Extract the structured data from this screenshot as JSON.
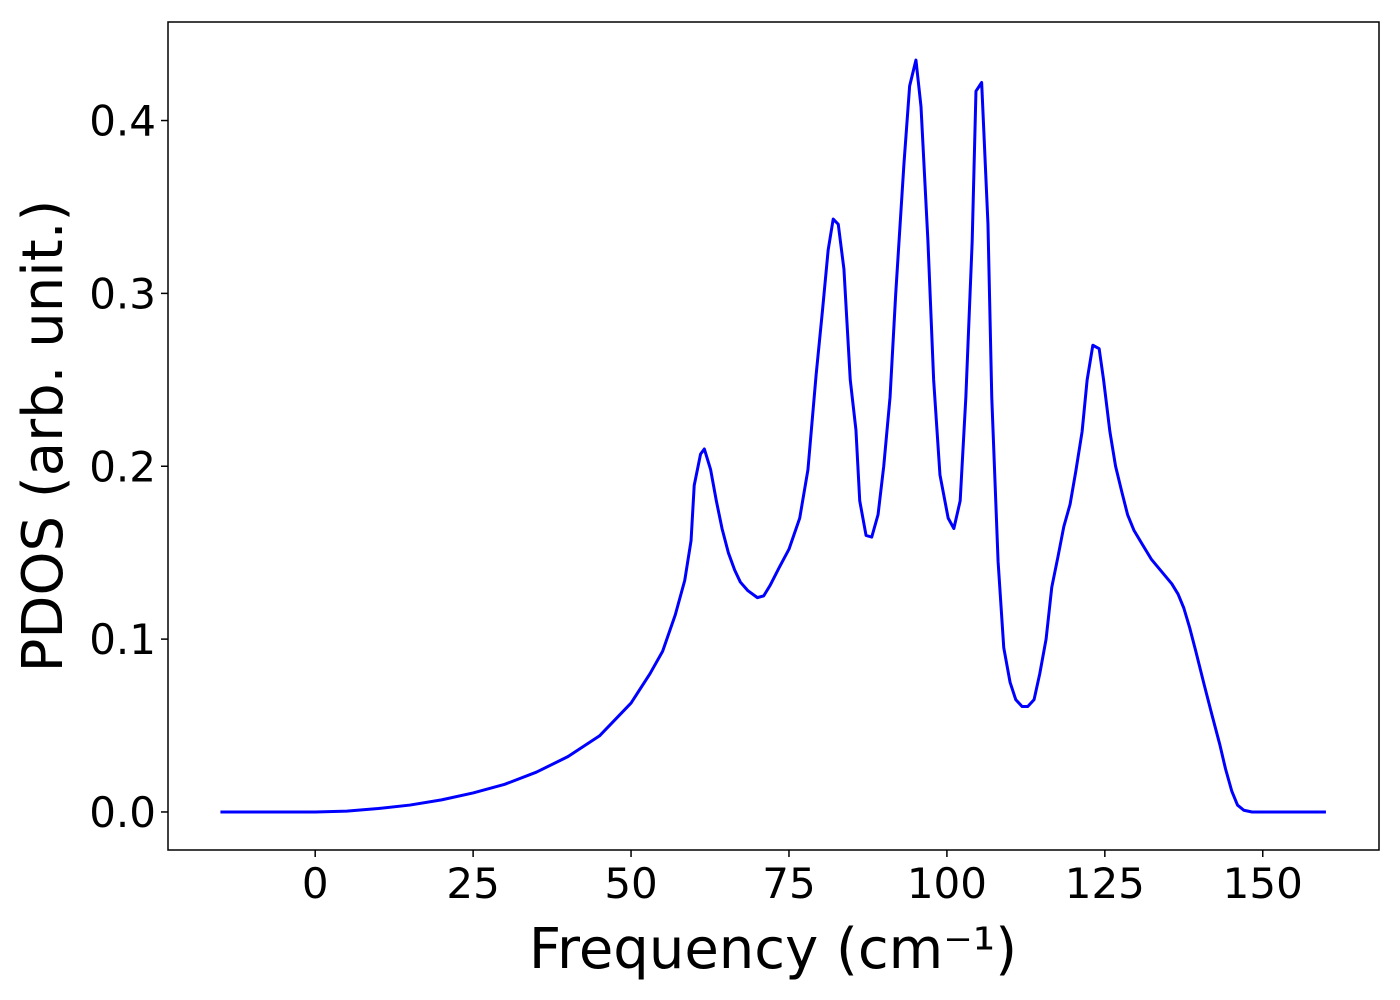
{
  "chart_data": {
    "type": "line",
    "xlabel": "Frequency (cm⁻¹)",
    "ylabel": "PDOS (arb. unit.)",
    "series": [
      {
        "color": "#0000ff",
        "x": [
          -15,
          0,
          5,
          10,
          15,
          20,
          25,
          30,
          35,
          40,
          45,
          50,
          53,
          55,
          57,
          58.5,
          59.5,
          60,
          61,
          61.6,
          62.6,
          63.5,
          64.4,
          65.4,
          66.4,
          67.3,
          68.5,
          70,
          71,
          72,
          73.4,
          75,
          76.7,
          78,
          79.3,
          80.3,
          81.2,
          82,
          82.8,
          83.7,
          84.7,
          85.6,
          86.2,
          87.2,
          88.1,
          89.1,
          90,
          91,
          91.9,
          93.2,
          94.1,
          95.1,
          95.9,
          97,
          97.9,
          98.9,
          100.2,
          101.1,
          102.1,
          103,
          104,
          104.6,
          105.5,
          106.5,
          107.1,
          108.1,
          109,
          110,
          110.9,
          111.9,
          112.8,
          113.8,
          114.7,
          115.7,
          116.6,
          117.6,
          118.5,
          119.5,
          120.4,
          121.4,
          122.2,
          123.1,
          124.1,
          124.8,
          125.8,
          126.7,
          127.7,
          128.6,
          129.6,
          130.9,
          132.4,
          134,
          135.6,
          136.6,
          137.5,
          138.4,
          139.4,
          140.7,
          141.9,
          143.2,
          144.1,
          145.1,
          146,
          147,
          148.3,
          160
        ],
        "values": [
          0,
          0,
          0.0005,
          0.002,
          0.004,
          0.007,
          0.011,
          0.016,
          0.023,
          0.032,
          0.044,
          0.063,
          0.08,
          0.093,
          0.114,
          0.134,
          0.157,
          0.189,
          0.207,
          0.21,
          0.198,
          0.18,
          0.164,
          0.15,
          0.14,
          0.133,
          0.128,
          0.124,
          0.125,
          0.131,
          0.141,
          0.152,
          0.17,
          0.198,
          0.253,
          0.29,
          0.325,
          0.343,
          0.34,
          0.314,
          0.25,
          0.221,
          0.18,
          0.16,
          0.159,
          0.172,
          0.2,
          0.24,
          0.3,
          0.375,
          0.42,
          0.435,
          0.408,
          0.33,
          0.25,
          0.195,
          0.17,
          0.164,
          0.18,
          0.24,
          0.33,
          0.417,
          0.422,
          0.34,
          0.24,
          0.145,
          0.095,
          0.075,
          0.065,
          0.061,
          0.061,
          0.065,
          0.08,
          0.1,
          0.13,
          0.148,
          0.165,
          0.178,
          0.197,
          0.22,
          0.25,
          0.27,
          0.268,
          0.25,
          0.22,
          0.2,
          0.185,
          0.172,
          0.163,
          0.155,
          0.146,
          0.139,
          0.132,
          0.126,
          0.118,
          0.107,
          0.093,
          0.074,
          0.057,
          0.039,
          0.025,
          0.012,
          0.004,
          0.001,
          0,
          0
        ]
      }
    ],
    "xlim": [
      -23.3,
      168.4
    ],
    "ylim": [
      -0.022,
      0.457
    ],
    "xticks": [
      0,
      25,
      50,
      75,
      100,
      125,
      150
    ],
    "yticks": [
      {
        "value": 0,
        "label": "0.0"
      },
      0.1,
      0.2,
      0.3,
      0.4
    ]
  }
}
